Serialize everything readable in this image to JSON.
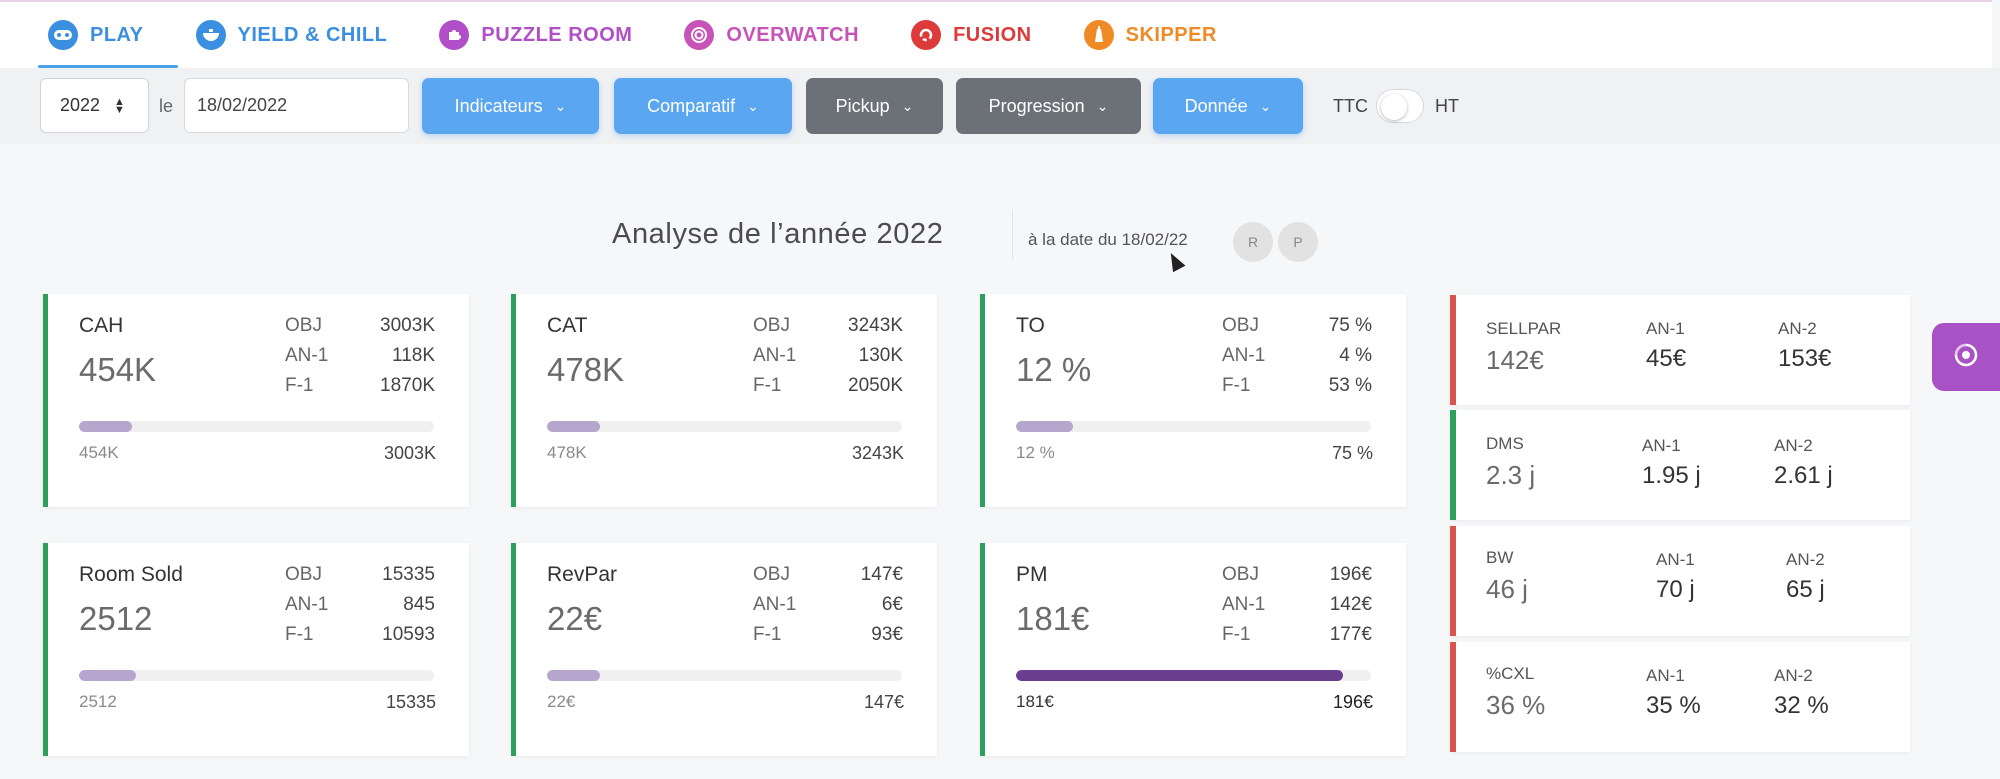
{
  "nav": {
    "tabs": [
      {
        "label": "PLAY",
        "color": "#3b8fe0",
        "icon": "gamepad-icon"
      },
      {
        "label": "YIELD & CHILL",
        "color": "#3b8fe0",
        "icon": "bowl-icon"
      },
      {
        "label": "PUZZLE ROOM",
        "color": "#b04fc8",
        "icon": "puzzle-icon"
      },
      {
        "label": "OVERWATCH",
        "color": "#c753b8",
        "icon": "spiral-icon"
      },
      {
        "label": "FUSION",
        "color": "#dd3a3a",
        "icon": "fusion-icon"
      },
      {
        "label": "SKIPPER",
        "color": "#f08a24",
        "icon": "lighthouse-icon"
      }
    ]
  },
  "toolbar": {
    "year": "2022",
    "le_label": "le",
    "date_value": "18/02/2022",
    "dropdowns": [
      "Indicateurs",
      "Comparatif",
      "Pickup",
      "Progression",
      "Donnée"
    ],
    "ttc_label": "TTC",
    "ht_label": "HT"
  },
  "header": {
    "title": "Analyse de l’année 2022",
    "date_info": "à la date du 18/02/22",
    "btn_r": "R",
    "btn_p": "P"
  },
  "cards": [
    {
      "name": "CAH",
      "value": "454K",
      "rows": [
        {
          "k": "OBJ",
          "v": "3003K"
        },
        {
          "k": "AN-1",
          "v": "118K"
        },
        {
          "k": "F-1",
          "v": "1870K"
        }
      ],
      "progress": 0.15,
      "bar_left": "454K",
      "bar_right": "3003K"
    },
    {
      "name": "CAT",
      "value": "478K",
      "rows": [
        {
          "k": "OBJ",
          "v": "3243K"
        },
        {
          "k": "AN-1",
          "v": "130K"
        },
        {
          "k": "F-1",
          "v": "2050K"
        }
      ],
      "progress": 0.15,
      "bar_left": "478K",
      "bar_right": "3243K"
    },
    {
      "name": "TO",
      "value": "12 %",
      "rows": [
        {
          "k": "OBJ",
          "v": "75 %"
        },
        {
          "k": "AN-1",
          "v": "4 %"
        },
        {
          "k": "F-1",
          "v": "53 %"
        }
      ],
      "progress": 0.16,
      "bar_left": "12 %",
      "bar_right": "75 %"
    },
    {
      "name": "Room Sold",
      "value": "2512",
      "rows": [
        {
          "k": "OBJ",
          "v": "15335"
        },
        {
          "k": "AN-1",
          "v": "845"
        },
        {
          "k": "F-1",
          "v": "10593"
        }
      ],
      "progress": 0.16,
      "bar_left": "2512",
      "bar_right": "15335"
    },
    {
      "name": "RevPar",
      "value": "22€",
      "rows": [
        {
          "k": "OBJ",
          "v": "147€"
        },
        {
          "k": "AN-1",
          "v": "6€"
        },
        {
          "k": "F-1",
          "v": "93€"
        }
      ],
      "progress": 0.15,
      "bar_left": "22€",
      "bar_right": "147€"
    },
    {
      "name": "PM",
      "value": "181€",
      "rows": [
        {
          "k": "OBJ",
          "v": "196€"
        },
        {
          "k": "AN-1",
          "v": "142€"
        },
        {
          "k": "F-1",
          "v": "177€"
        }
      ],
      "progress": 0.92,
      "bar_left": "181€",
      "bar_right": "196€"
    }
  ],
  "stats": [
    {
      "label": "SELLPAR",
      "value": "142€",
      "an1_label": "AN-1",
      "an1": "45€",
      "an2_label": "AN-2",
      "an2": "153€",
      "border": "#d9534f"
    },
    {
      "label": "DMS",
      "value": "2.3 j",
      "an1_label": "AN-1",
      "an1": "1.95 j",
      "an2_label": "AN-2",
      "an2": "2.61 j",
      "border": "#2e9e5b"
    },
    {
      "label": "BW",
      "value": "46 j",
      "an1_label": "AN-1",
      "an1": "70 j",
      "an2_label": "AN-2",
      "an2": "65 j",
      "border": "#d9534f"
    },
    {
      "label": "%CXL",
      "value": "36 %",
      "an1_label": "AN-1",
      "an1": "35 %",
      "an2_label": "AN-2",
      "an2": "32 %",
      "border": "#d9534f"
    }
  ],
  "fab_icon": "support-icon"
}
